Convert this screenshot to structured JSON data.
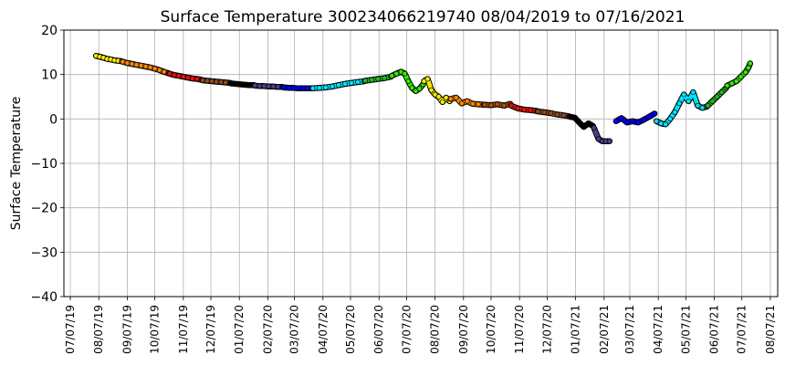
{
  "chart_data": {
    "type": "scatter",
    "title": "Surface Temperature 300234066219740  08/04/2019 to 07/16/2021",
    "xlabel": "",
    "ylabel": "Surface Temperature",
    "ylim": [
      -40,
      20
    ],
    "xlim": [
      "2019-06-30",
      "2021-08-15"
    ],
    "grid": true,
    "y_ticks": [
      20,
      10,
      0,
      -10,
      -20,
      -30,
      -40
    ],
    "x_ticks": [
      {
        "date": "2019-07-07",
        "label": "07/07/19"
      },
      {
        "date": "2019-08-07",
        "label": "08/07/19"
      },
      {
        "date": "2019-09-07",
        "label": "09/07/19"
      },
      {
        "date": "2019-10-07",
        "label": "10/07/19"
      },
      {
        "date": "2019-11-07",
        "label": "11/07/19"
      },
      {
        "date": "2019-12-07",
        "label": "12/07/19"
      },
      {
        "date": "2020-01-07",
        "label": "01/07/20"
      },
      {
        "date": "2020-02-07",
        "label": "02/07/20"
      },
      {
        "date": "2020-03-07",
        "label": "03/07/20"
      },
      {
        "date": "2020-04-07",
        "label": "04/07/20"
      },
      {
        "date": "2020-05-07",
        "label": "05/07/20"
      },
      {
        "date": "2020-06-07",
        "label": "06/07/20"
      },
      {
        "date": "2020-07-07",
        "label": "07/07/20"
      },
      {
        "date": "2020-08-07",
        "label": "08/07/20"
      },
      {
        "date": "2020-09-07",
        "label": "09/07/20"
      },
      {
        "date": "2020-10-07",
        "label": "10/07/20"
      },
      {
        "date": "2020-11-07",
        "label": "11/07/20"
      },
      {
        "date": "2020-12-07",
        "label": "12/07/20"
      },
      {
        "date": "2021-01-07",
        "label": "01/07/21"
      },
      {
        "date": "2021-02-07",
        "label": "02/07/21"
      },
      {
        "date": "2021-03-07",
        "label": "03/07/21"
      },
      {
        "date": "2021-04-07",
        "label": "04/07/21"
      },
      {
        "date": "2021-05-07",
        "label": "05/07/21"
      },
      {
        "date": "2021-06-07",
        "label": "06/07/21"
      },
      {
        "date": "2021-07-07",
        "label": "07/07/21"
      },
      {
        "date": "2021-08-07",
        "label": "08/07/21"
      }
    ],
    "series": [
      {
        "color": "#ffee00",
        "points": [
          [
            "2019-08-04",
            14.2
          ],
          [
            "2019-08-08",
            14.0
          ],
          [
            "2019-08-12",
            13.8
          ],
          [
            "2019-08-16",
            13.5
          ],
          [
            "2019-08-20",
            13.4
          ],
          [
            "2019-08-24",
            13.2
          ],
          [
            "2019-08-28",
            13.1
          ],
          [
            "2019-09-01",
            13.0
          ]
        ]
      },
      {
        "color": "#ff8800",
        "points": [
          [
            "2019-09-02",
            12.9
          ],
          [
            "2019-09-07",
            12.6
          ],
          [
            "2019-09-12",
            12.4
          ],
          [
            "2019-09-17",
            12.2
          ],
          [
            "2019-09-22",
            12.0
          ],
          [
            "2019-09-27",
            11.8
          ],
          [
            "2019-10-02",
            11.6
          ],
          [
            "2019-10-07",
            11.3
          ],
          [
            "2019-10-12",
            11.0
          ],
          [
            "2019-10-17",
            10.6
          ],
          [
            "2019-10-22",
            10.3
          ]
        ]
      },
      {
        "color": "#e81010",
        "points": [
          [
            "2019-10-23",
            10.2
          ],
          [
            "2019-10-28",
            9.9
          ],
          [
            "2019-11-02",
            9.7
          ],
          [
            "2019-11-07",
            9.5
          ],
          [
            "2019-11-12",
            9.3
          ],
          [
            "2019-11-17",
            9.1
          ],
          [
            "2019-11-22",
            9.0
          ],
          [
            "2019-11-27",
            8.8
          ]
        ]
      },
      {
        "color": "#8b4a20",
        "points": [
          [
            "2019-11-28",
            8.7
          ],
          [
            "2019-12-03",
            8.6
          ],
          [
            "2019-12-08",
            8.5
          ],
          [
            "2019-12-13",
            8.4
          ],
          [
            "2019-12-18",
            8.3
          ],
          [
            "2019-12-23",
            8.2
          ],
          [
            "2019-12-28",
            8.1
          ]
        ]
      },
      {
        "color": "#000000",
        "points": [
          [
            "2019-12-29",
            8.0
          ],
          [
            "2020-01-03",
            7.9
          ],
          [
            "2020-01-08",
            7.8
          ],
          [
            "2020-01-13",
            7.7
          ],
          [
            "2020-01-18",
            7.6
          ],
          [
            "2020-01-23",
            7.6
          ]
        ]
      },
      {
        "color": "#4a3f8c",
        "points": [
          [
            "2020-01-24",
            7.5
          ],
          [
            "2020-01-29",
            7.4
          ],
          [
            "2020-02-03",
            7.4
          ],
          [
            "2020-02-08",
            7.3
          ],
          [
            "2020-02-13",
            7.3
          ],
          [
            "2020-02-18",
            7.2
          ],
          [
            "2020-02-23",
            7.2
          ]
        ]
      },
      {
        "color": "#0000ff",
        "points": [
          [
            "2020-02-24",
            7.1
          ],
          [
            "2020-03-01",
            7.0
          ],
          [
            "2020-03-06",
            7.0
          ],
          [
            "2020-03-11",
            6.9
          ],
          [
            "2020-03-16",
            6.9
          ],
          [
            "2020-03-21",
            6.9
          ],
          [
            "2020-03-26",
            6.9
          ]
        ]
      },
      {
        "color": "#00e5ff",
        "points": [
          [
            "2020-03-27",
            6.9
          ],
          [
            "2020-04-03",
            7.0
          ],
          [
            "2020-04-10",
            7.1
          ],
          [
            "2020-04-17",
            7.3
          ],
          [
            "2020-04-24",
            7.6
          ],
          [
            "2020-05-01",
            7.9
          ],
          [
            "2020-05-08",
            8.1
          ],
          [
            "2020-05-15",
            8.3
          ],
          [
            "2020-05-22",
            8.5
          ]
        ]
      },
      {
        "color": "#22bb22",
        "points": [
          [
            "2020-05-23",
            8.6
          ],
          [
            "2020-05-30",
            8.8
          ],
          [
            "2020-06-06",
            9.0
          ],
          [
            "2020-06-13",
            9.2
          ],
          [
            "2020-06-20",
            9.5
          ]
        ]
      },
      {
        "color": "#33ee00",
        "points": [
          [
            "2020-06-21",
            9.7
          ],
          [
            "2020-06-26",
            10.2
          ],
          [
            "2020-07-01",
            10.6
          ],
          [
            "2020-07-05",
            10.2
          ],
          [
            "2020-07-09",
            8.5
          ],
          [
            "2020-07-13",
            7.0
          ],
          [
            "2020-07-17",
            6.3
          ],
          [
            "2020-07-21",
            6.8
          ],
          [
            "2020-07-25",
            7.8
          ]
        ]
      },
      {
        "color": "#ffee00",
        "points": [
          [
            "2020-07-26",
            8.5
          ],
          [
            "2020-07-30",
            9.0
          ],
          [
            "2020-08-03",
            6.5
          ],
          [
            "2020-08-07",
            5.5
          ],
          [
            "2020-08-11",
            5.0
          ],
          [
            "2020-08-15",
            3.8
          ],
          [
            "2020-08-19",
            4.8
          ],
          [
            "2020-08-23",
            4.0
          ]
        ]
      },
      {
        "color": "#ff8800",
        "points": [
          [
            "2020-08-24",
            4.5
          ],
          [
            "2020-08-30",
            4.8
          ],
          [
            "2020-09-05",
            3.5
          ],
          [
            "2020-09-11",
            4.0
          ],
          [
            "2020-09-17",
            3.4
          ],
          [
            "2020-09-23",
            3.3
          ],
          [
            "2020-09-29",
            3.2
          ]
        ]
      },
      {
        "color": "#aa5500",
        "points": [
          [
            "2020-09-30",
            3.2
          ],
          [
            "2020-10-07",
            3.1
          ],
          [
            "2020-10-14",
            3.3
          ],
          [
            "2020-10-21",
            3.0
          ],
          [
            "2020-10-28",
            3.4
          ]
        ]
      },
      {
        "color": "#e81010",
        "points": [
          [
            "2020-10-29",
            3.0
          ],
          [
            "2020-11-05",
            2.4
          ],
          [
            "2020-11-12",
            2.1
          ],
          [
            "2020-11-19",
            2.0
          ],
          [
            "2020-11-26",
            1.8
          ]
        ]
      },
      {
        "color": "#8b4a20",
        "points": [
          [
            "2020-11-27",
            1.7
          ],
          [
            "2020-12-04",
            1.5
          ],
          [
            "2020-12-11",
            1.3
          ],
          [
            "2020-12-18",
            1.0
          ],
          [
            "2020-12-25",
            0.8
          ],
          [
            "2020-12-31",
            0.6
          ]
        ]
      },
      {
        "color": "#000000",
        "points": [
          [
            "2021-01-01",
            0.5
          ],
          [
            "2021-01-06",
            0.3
          ],
          [
            "2021-01-11",
            -0.8
          ],
          [
            "2021-01-16",
            -1.8
          ],
          [
            "2021-01-21",
            -1.0
          ],
          [
            "2021-01-26",
            -1.6
          ]
        ]
      },
      {
        "color": "#4a3f8c",
        "points": [
          [
            "2021-01-27",
            -2.0
          ],
          [
            "2021-02-01",
            -4.5
          ],
          [
            "2021-02-05",
            -5.0
          ],
          [
            "2021-02-09",
            -5.0
          ],
          [
            "2021-02-13",
            -5.0
          ]
        ]
      },
      {
        "color": "#0000ff",
        "points": [
          [
            "2021-02-20",
            -0.5
          ],
          [
            "2021-02-26",
            0.2
          ],
          [
            "2021-03-04",
            -0.8
          ],
          [
            "2021-03-10",
            -0.5
          ],
          [
            "2021-03-16",
            -0.8
          ],
          [
            "2021-03-22",
            -0.2
          ],
          [
            "2021-03-28",
            0.5
          ],
          [
            "2021-04-03",
            1.2
          ]
        ]
      },
      {
        "color": "#00e5ff",
        "points": [
          [
            "2021-04-05",
            -0.5
          ],
          [
            "2021-04-10",
            -1.0
          ],
          [
            "2021-04-15",
            -1.2
          ],
          [
            "2021-04-20",
            0.0
          ],
          [
            "2021-04-25",
            1.5
          ],
          [
            "2021-04-30",
            3.5
          ],
          [
            "2021-05-05",
            5.5
          ],
          [
            "2021-05-10",
            4.0
          ],
          [
            "2021-05-15",
            6.0
          ],
          [
            "2021-05-20",
            3.0
          ],
          [
            "2021-05-25",
            2.5
          ],
          [
            "2021-05-30",
            2.8
          ]
        ]
      },
      {
        "color": "#22bb22",
        "points": [
          [
            "2021-05-31",
            3.0
          ],
          [
            "2021-06-05",
            4.0
          ],
          [
            "2021-06-10",
            5.0
          ],
          [
            "2021-06-15",
            6.0
          ],
          [
            "2021-06-20",
            7.0
          ]
        ]
      },
      {
        "color": "#33ee00",
        "points": [
          [
            "2021-06-21",
            7.5
          ],
          [
            "2021-06-26",
            8.0
          ],
          [
            "2021-07-01",
            8.5
          ],
          [
            "2021-07-06",
            9.5
          ],
          [
            "2021-07-11",
            10.5
          ],
          [
            "2021-07-14",
            11.5
          ],
          [
            "2021-07-16",
            12.5
          ]
        ]
      }
    ]
  }
}
